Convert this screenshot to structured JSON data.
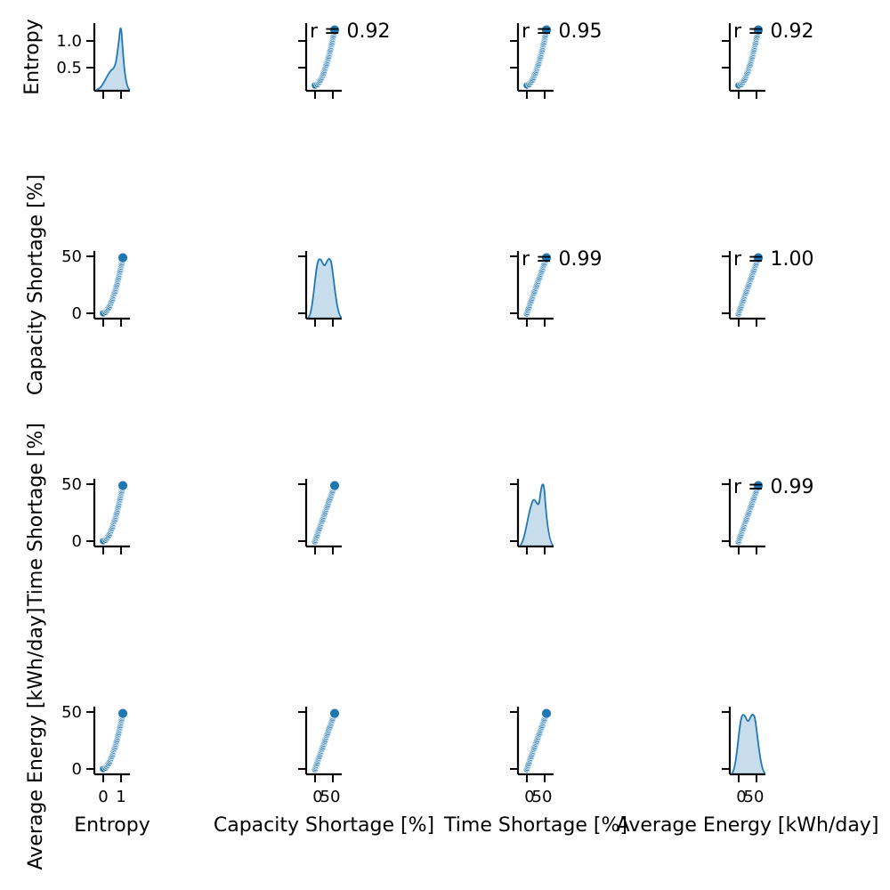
{
  "chart_data": {
    "type": "pairplot",
    "variables": [
      "Entropy",
      "Capacity Shortage [%]",
      "Time Shortage [%]",
      "Average Energy [kWh/day]"
    ],
    "color": "#1f77b4",
    "ticks": {
      "x": [
        [
          "0",
          "1"
        ],
        [
          "0",
          "50"
        ],
        [
          "0",
          "50"
        ],
        [
          "0",
          "50"
        ]
      ],
      "y": [
        [
          "0.5",
          "1.0"
        ],
        [
          "0",
          "50"
        ],
        [
          "0",
          "50"
        ],
        [
          "0",
          "50"
        ]
      ]
    },
    "correlations": [
      {
        "row": 0,
        "col": 1,
        "label": "r = 0.92"
      },
      {
        "row": 0,
        "col": 2,
        "label": "r = 0.95"
      },
      {
        "row": 0,
        "col": 3,
        "label": "r = 0.92"
      },
      {
        "row": 1,
        "col": 2,
        "label": "r = 0.99"
      },
      {
        "row": 1,
        "col": 3,
        "label": "r = 1.00"
      },
      {
        "row": 2,
        "col": 3,
        "label": "r = 0.99"
      }
    ],
    "diagonal": "kde",
    "lower": "scatter",
    "upper": "scatter with correlation label"
  }
}
